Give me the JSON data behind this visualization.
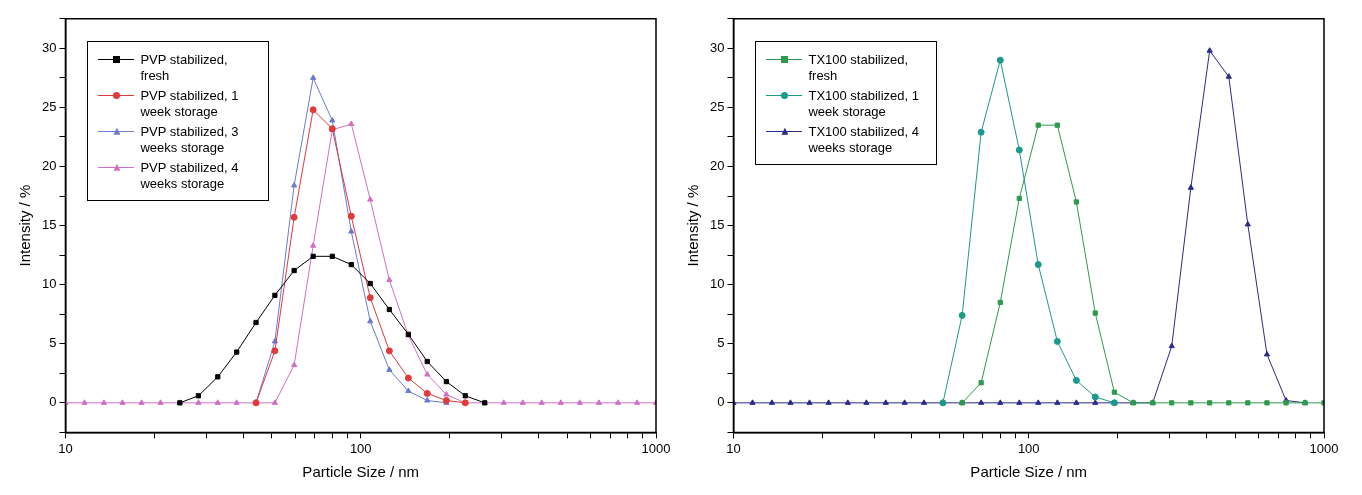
{
  "chart_data": [
    {
      "type": "line",
      "xlabel": "Particle Size / nm",
      "ylabel": "Intensity / %",
      "log": "x",
      "grid": false,
      "legend": "top left",
      "xlim": [
        10,
        1000
      ],
      "ylim": [
        -2.5,
        32.5
      ],
      "xticks": [
        10,
        {
          "value": 20,
          "label": null
        },
        {
          "value": 30,
          "label": null
        },
        {
          "value": 40,
          "label": null
        },
        {
          "value": 50,
          "label": null
        },
        {
          "value": 60,
          "label": null
        },
        {
          "value": 70,
          "label": null
        },
        {
          "value": 80,
          "label": null
        },
        {
          "value": 90,
          "label": null
        },
        100,
        {
          "value": 200,
          "label": null
        },
        {
          "value": 300,
          "label": null
        },
        {
          "value": 400,
          "label": null
        },
        {
          "value": 500,
          "label": null
        },
        {
          "value": 600,
          "label": null
        },
        {
          "value": 700,
          "label": null
        },
        {
          "value": 800,
          "label": null
        },
        {
          "value": 900,
          "label": null
        },
        1000
      ],
      "yticks": [
        {
          "value": -2.5,
          "label": null
        },
        0,
        {
          "value": 2.5,
          "label": null
        },
        5,
        {
          "value": 7.5,
          "label": null
        },
        10,
        {
          "value": 12.5,
          "label": null
        },
        15,
        {
          "value": 17.5,
          "label": null
        },
        20,
        {
          "value": 22.5,
          "label": null
        },
        25,
        {
          "value": 27.5,
          "label": null
        },
        30,
        {
          "value": 32.5,
          "label": null
        }
      ],
      "x": [
        10,
        11.6,
        13.5,
        15.6,
        18.1,
        21,
        24.4,
        28.2,
        32.8,
        38,
        44.2,
        51.2,
        59.5,
        69,
        80.1,
        92.9,
        107.7,
        125,
        145,
        168,
        195,
        226,
        263,
        305,
        354,
        410,
        476,
        552,
        641,
        744,
        863,
        1000
      ],
      "series": [
        {
          "name": "PVP stabilized, fresh",
          "color": "#000000",
          "marker": "square",
          "values": [
            null,
            null,
            null,
            null,
            null,
            null,
            0,
            0.6,
            2.2,
            4.3,
            6.8,
            9.1,
            11.2,
            12.4,
            12.4,
            11.7,
            10.1,
            7.9,
            5.8,
            3.5,
            1.8,
            0.6,
            0,
            null,
            null,
            null,
            null,
            null,
            null,
            null,
            null,
            null
          ]
        },
        {
          "name": "PVP stabilized, 1 week storage",
          "color": "#e03a3a",
          "marker": "circle",
          "values": [
            null,
            null,
            null,
            null,
            null,
            null,
            null,
            null,
            null,
            null,
            0,
            4.4,
            15.7,
            24.8,
            23.2,
            15.8,
            8.9,
            4.4,
            2.1,
            0.8,
            0.2,
            0,
            null,
            null,
            null,
            null,
            null,
            null,
            null,
            null,
            null,
            null
          ]
        },
        {
          "name": "PVP stabilized, 3 weeks storage",
          "color": "#6a7ad0",
          "marker": "triangle",
          "values": [
            null,
            null,
            null,
            null,
            null,
            null,
            null,
            null,
            null,
            null,
            0,
            5.2,
            18.4,
            27.5,
            23.9,
            14.5,
            6.9,
            2.8,
            1.0,
            0.2,
            0,
            null,
            null,
            null,
            null,
            null,
            null,
            null,
            null,
            null,
            null,
            null
          ]
        },
        {
          "name": "PVP stabilized, 4 weeks storage",
          "color": "#d070c0",
          "marker": "triangle",
          "values": [
            0,
            0,
            0,
            0,
            0,
            0,
            0,
            0,
            0,
            0,
            0,
            0,
            3.2,
            13.3,
            23.1,
            23.6,
            17.2,
            10.4,
            5.7,
            2.4,
            0.7,
            0,
            0,
            0,
            0,
            0,
            0,
            0,
            0,
            0,
            0,
            0
          ]
        }
      ]
    },
    {
      "type": "line",
      "xlabel": "Particle Size / nm",
      "ylabel": "Intensity / %",
      "log": "x",
      "grid": false,
      "legend": "top left",
      "xlim": [
        10,
        1000
      ],
      "ylim": [
        -2.5,
        32.5
      ],
      "xticks": [
        10,
        {
          "value": 20,
          "label": null
        },
        {
          "value": 30,
          "label": null
        },
        {
          "value": 40,
          "label": null
        },
        {
          "value": 50,
          "label": null
        },
        {
          "value": 60,
          "label": null
        },
        {
          "value": 70,
          "label": null
        },
        {
          "value": 80,
          "label": null
        },
        {
          "value": 90,
          "label": null
        },
        100,
        {
          "value": 200,
          "label": null
        },
        {
          "value": 300,
          "label": null
        },
        {
          "value": 400,
          "label": null
        },
        {
          "value": 500,
          "label": null
        },
        {
          "value": 600,
          "label": null
        },
        {
          "value": 700,
          "label": null
        },
        {
          "value": 800,
          "label": null
        },
        {
          "value": 900,
          "label": null
        },
        1000
      ],
      "yticks": [
        {
          "value": -2.5,
          "label": null
        },
        0,
        {
          "value": 2.5,
          "label": null
        },
        5,
        {
          "value": 7.5,
          "label": null
        },
        10,
        {
          "value": 12.5,
          "label": null
        },
        15,
        {
          "value": 17.5,
          "label": null
        },
        20,
        {
          "value": 22.5,
          "label": null
        },
        25,
        {
          "value": 27.5,
          "label": null
        },
        30,
        {
          "value": 32.5,
          "label": null
        }
      ],
      "x": [
        10,
        11.6,
        13.5,
        15.6,
        18.1,
        21,
        24.4,
        28.2,
        32.8,
        38,
        44.2,
        51.2,
        59.5,
        69,
        80.1,
        92.9,
        107.7,
        125,
        145,
        168,
        195,
        226,
        263,
        305,
        354,
        410,
        476,
        552,
        641,
        744,
        863,
        1000
      ],
      "series": [
        {
          "name": "TX100 stabilized, fresh",
          "color": "#2e9a4e",
          "marker": "square",
          "values": [
            null,
            null,
            null,
            null,
            null,
            null,
            null,
            null,
            null,
            null,
            null,
            null,
            0,
            1.7,
            8.5,
            17.3,
            23.5,
            23.5,
            17.0,
            7.6,
            0.9,
            0,
            0,
            0,
            0,
            0,
            0,
            0,
            0,
            0,
            0,
            0
          ]
        },
        {
          "name": "TX100 stabilized, 1 week storage",
          "color": "#1a9a8a",
          "marker": "circle",
          "values": [
            null,
            null,
            null,
            null,
            null,
            null,
            null,
            null,
            null,
            null,
            null,
            0,
            7.4,
            22.9,
            29.0,
            21.4,
            11.7,
            5.2,
            1.9,
            0.5,
            0,
            null,
            null,
            null,
            null,
            null,
            null,
            null,
            null,
            null,
            null,
            null
          ]
        },
        {
          "name": "TX100 stabilized, 4 weeks storage",
          "color": "#2a2a8a",
          "marker": "triangle",
          "values": [
            0,
            0,
            0,
            0,
            0,
            0,
            0,
            0,
            0,
            0,
            0,
            0,
            0,
            0,
            0,
            0,
            0,
            0,
            0,
            0,
            0,
            0,
            0,
            4.8,
            18.2,
            29.8,
            27.6,
            15.1,
            4.1,
            0.2,
            0,
            null
          ]
        }
      ]
    }
  ]
}
